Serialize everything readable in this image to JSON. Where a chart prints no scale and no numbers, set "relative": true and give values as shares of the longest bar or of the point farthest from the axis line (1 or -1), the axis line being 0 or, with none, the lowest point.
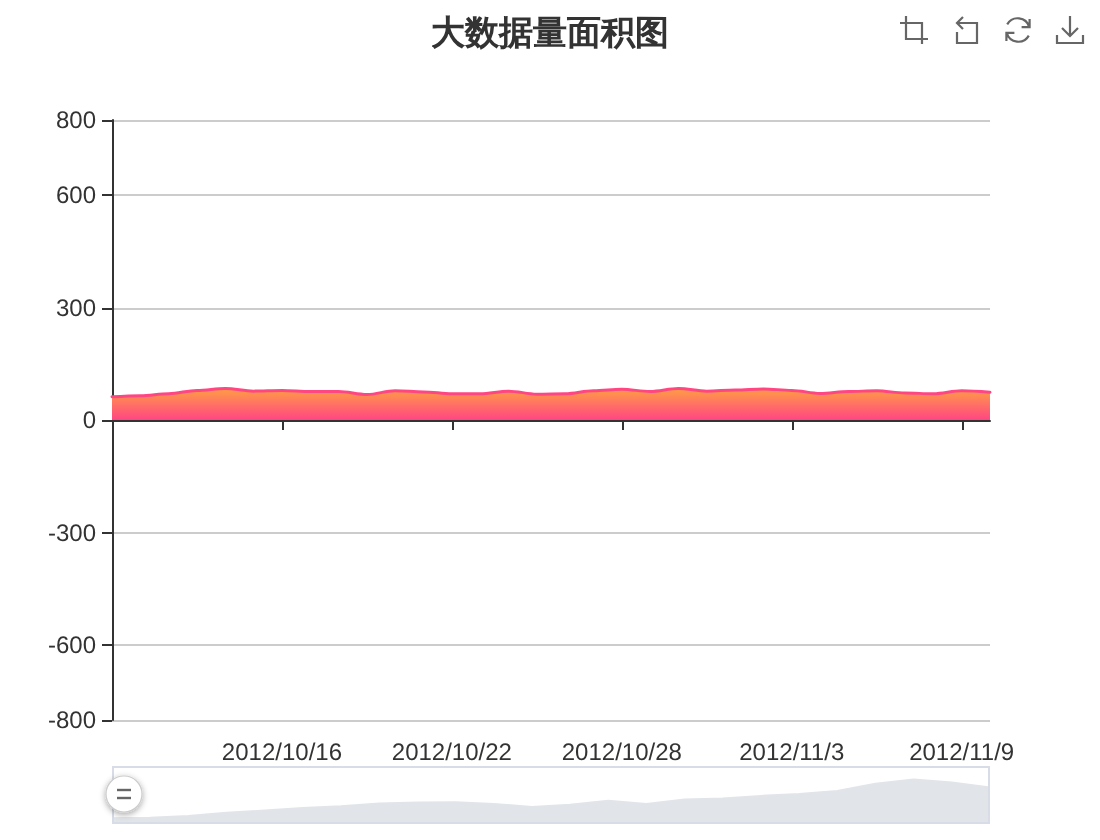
{
  "chart_data": [
    {
      "type": "area",
      "title": "大数据量面积图",
      "categories": [
        null,
        null,
        null,
        null,
        null,
        null,
        "2012/10/16",
        null,
        null,
        null,
        null,
        null,
        "2012/10/22",
        null,
        null,
        null,
        null,
        null,
        "2012/10/28",
        null,
        null,
        null,
        null,
        null,
        "2012/11/3",
        null,
        null,
        null,
        null,
        null,
        "2012/11/9",
        null
      ],
      "values": [
        62,
        65,
        70,
        79,
        84,
        77,
        79,
        76,
        76,
        68,
        78,
        75,
        70,
        70,
        77,
        69,
        70,
        78,
        82,
        76,
        84,
        77,
        80,
        83,
        79,
        71,
        76,
        78,
        72,
        70,
        78,
        74
      ],
      "color": "#ff4683",
      "ylim": [
        -800,
        800
      ],
      "yticks": [
        -800,
        -600,
        -300,
        0,
        300,
        600,
        800
      ],
      "grid": "y",
      "marker": "none"
    },
    {
      "type": "area",
      "relative": true,
      "categories": [
        null,
        null,
        null,
        null,
        null,
        null,
        null,
        null,
        null,
        null,
        null,
        null,
        null,
        null,
        null,
        null,
        null,
        null,
        null,
        null,
        null,
        null,
        null,
        null
      ],
      "values": [
        0.13,
        0.14,
        0.18,
        0.25,
        0.3,
        0.36,
        0.4,
        0.46,
        0.48,
        0.49,
        0.45,
        0.38,
        0.43,
        0.52,
        0.45,
        0.55,
        0.57,
        0.63,
        0.67,
        0.74,
        0.9,
        1,
        0.93,
        0.82
      ],
      "color": "#e1e4e9",
      "marker": "none"
    }
  ]
}
